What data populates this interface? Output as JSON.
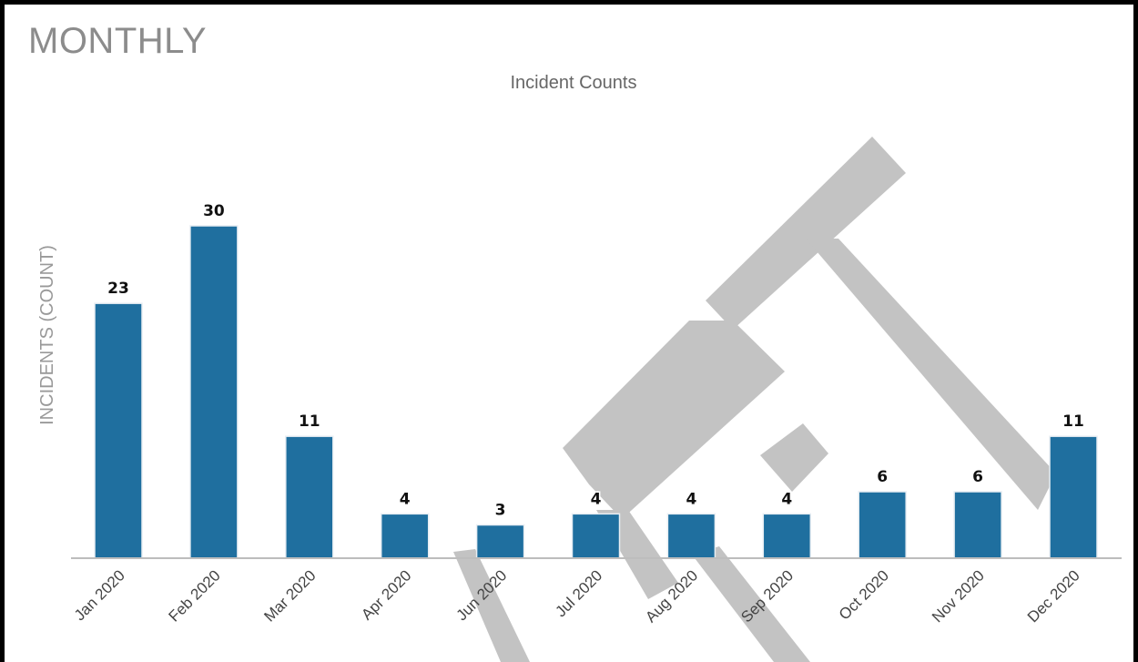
{
  "heading": "MONTHLY",
  "chart_data": {
    "type": "bar",
    "title": "Incident Counts",
    "ylabel": "INCIDENTS (COUNT)",
    "xlabel": "",
    "categories": [
      "Jan 2020",
      "Feb 2020",
      "Mar 2020",
      "Apr 2020",
      "Jun 2020",
      "Jul 2020",
      "Aug 2020",
      "Sep 2020",
      "Oct 2020",
      "Nov 2020",
      "Dec 2020"
    ],
    "values": [
      23,
      30,
      11,
      4,
      3,
      4,
      4,
      4,
      6,
      6,
      11
    ],
    "ylim": [
      0,
      30
    ],
    "grid": false,
    "bar_color": "#1f6f9f",
    "data_labels": true
  }
}
